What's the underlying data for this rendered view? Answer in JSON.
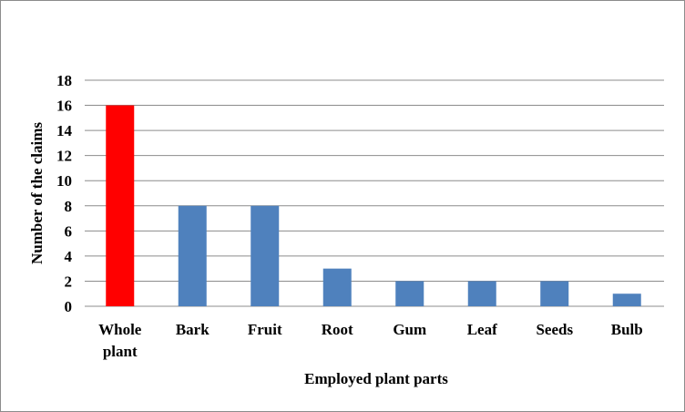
{
  "chart_data": {
    "type": "bar",
    "title": "",
    "xlabel": "Employed plant parts",
    "ylabel": "Number of the claims",
    "categories": [
      [
        "Whole",
        "plant"
      ],
      [
        "Bark"
      ],
      [
        "Fruit"
      ],
      [
        "Root"
      ],
      [
        "Gum"
      ],
      [
        "Leaf"
      ],
      [
        "Seeds"
      ],
      [
        "Bulb"
      ]
    ],
    "values": [
      16,
      8,
      8,
      3,
      2,
      2,
      2,
      1
    ],
    "bar_colors": [
      "#ff0000",
      "#4f81bd",
      "#4f81bd",
      "#4f81bd",
      "#4f81bd",
      "#4f81bd",
      "#4f81bd",
      "#4f81bd"
    ],
    "ylim": [
      0,
      18
    ],
    "yticks": [
      "0",
      "2",
      "4",
      "6",
      "8",
      "10",
      "12",
      "14",
      "16",
      "18"
    ],
    "grid": true,
    "gridline_color": "#8c8c8c",
    "legend": "none"
  }
}
